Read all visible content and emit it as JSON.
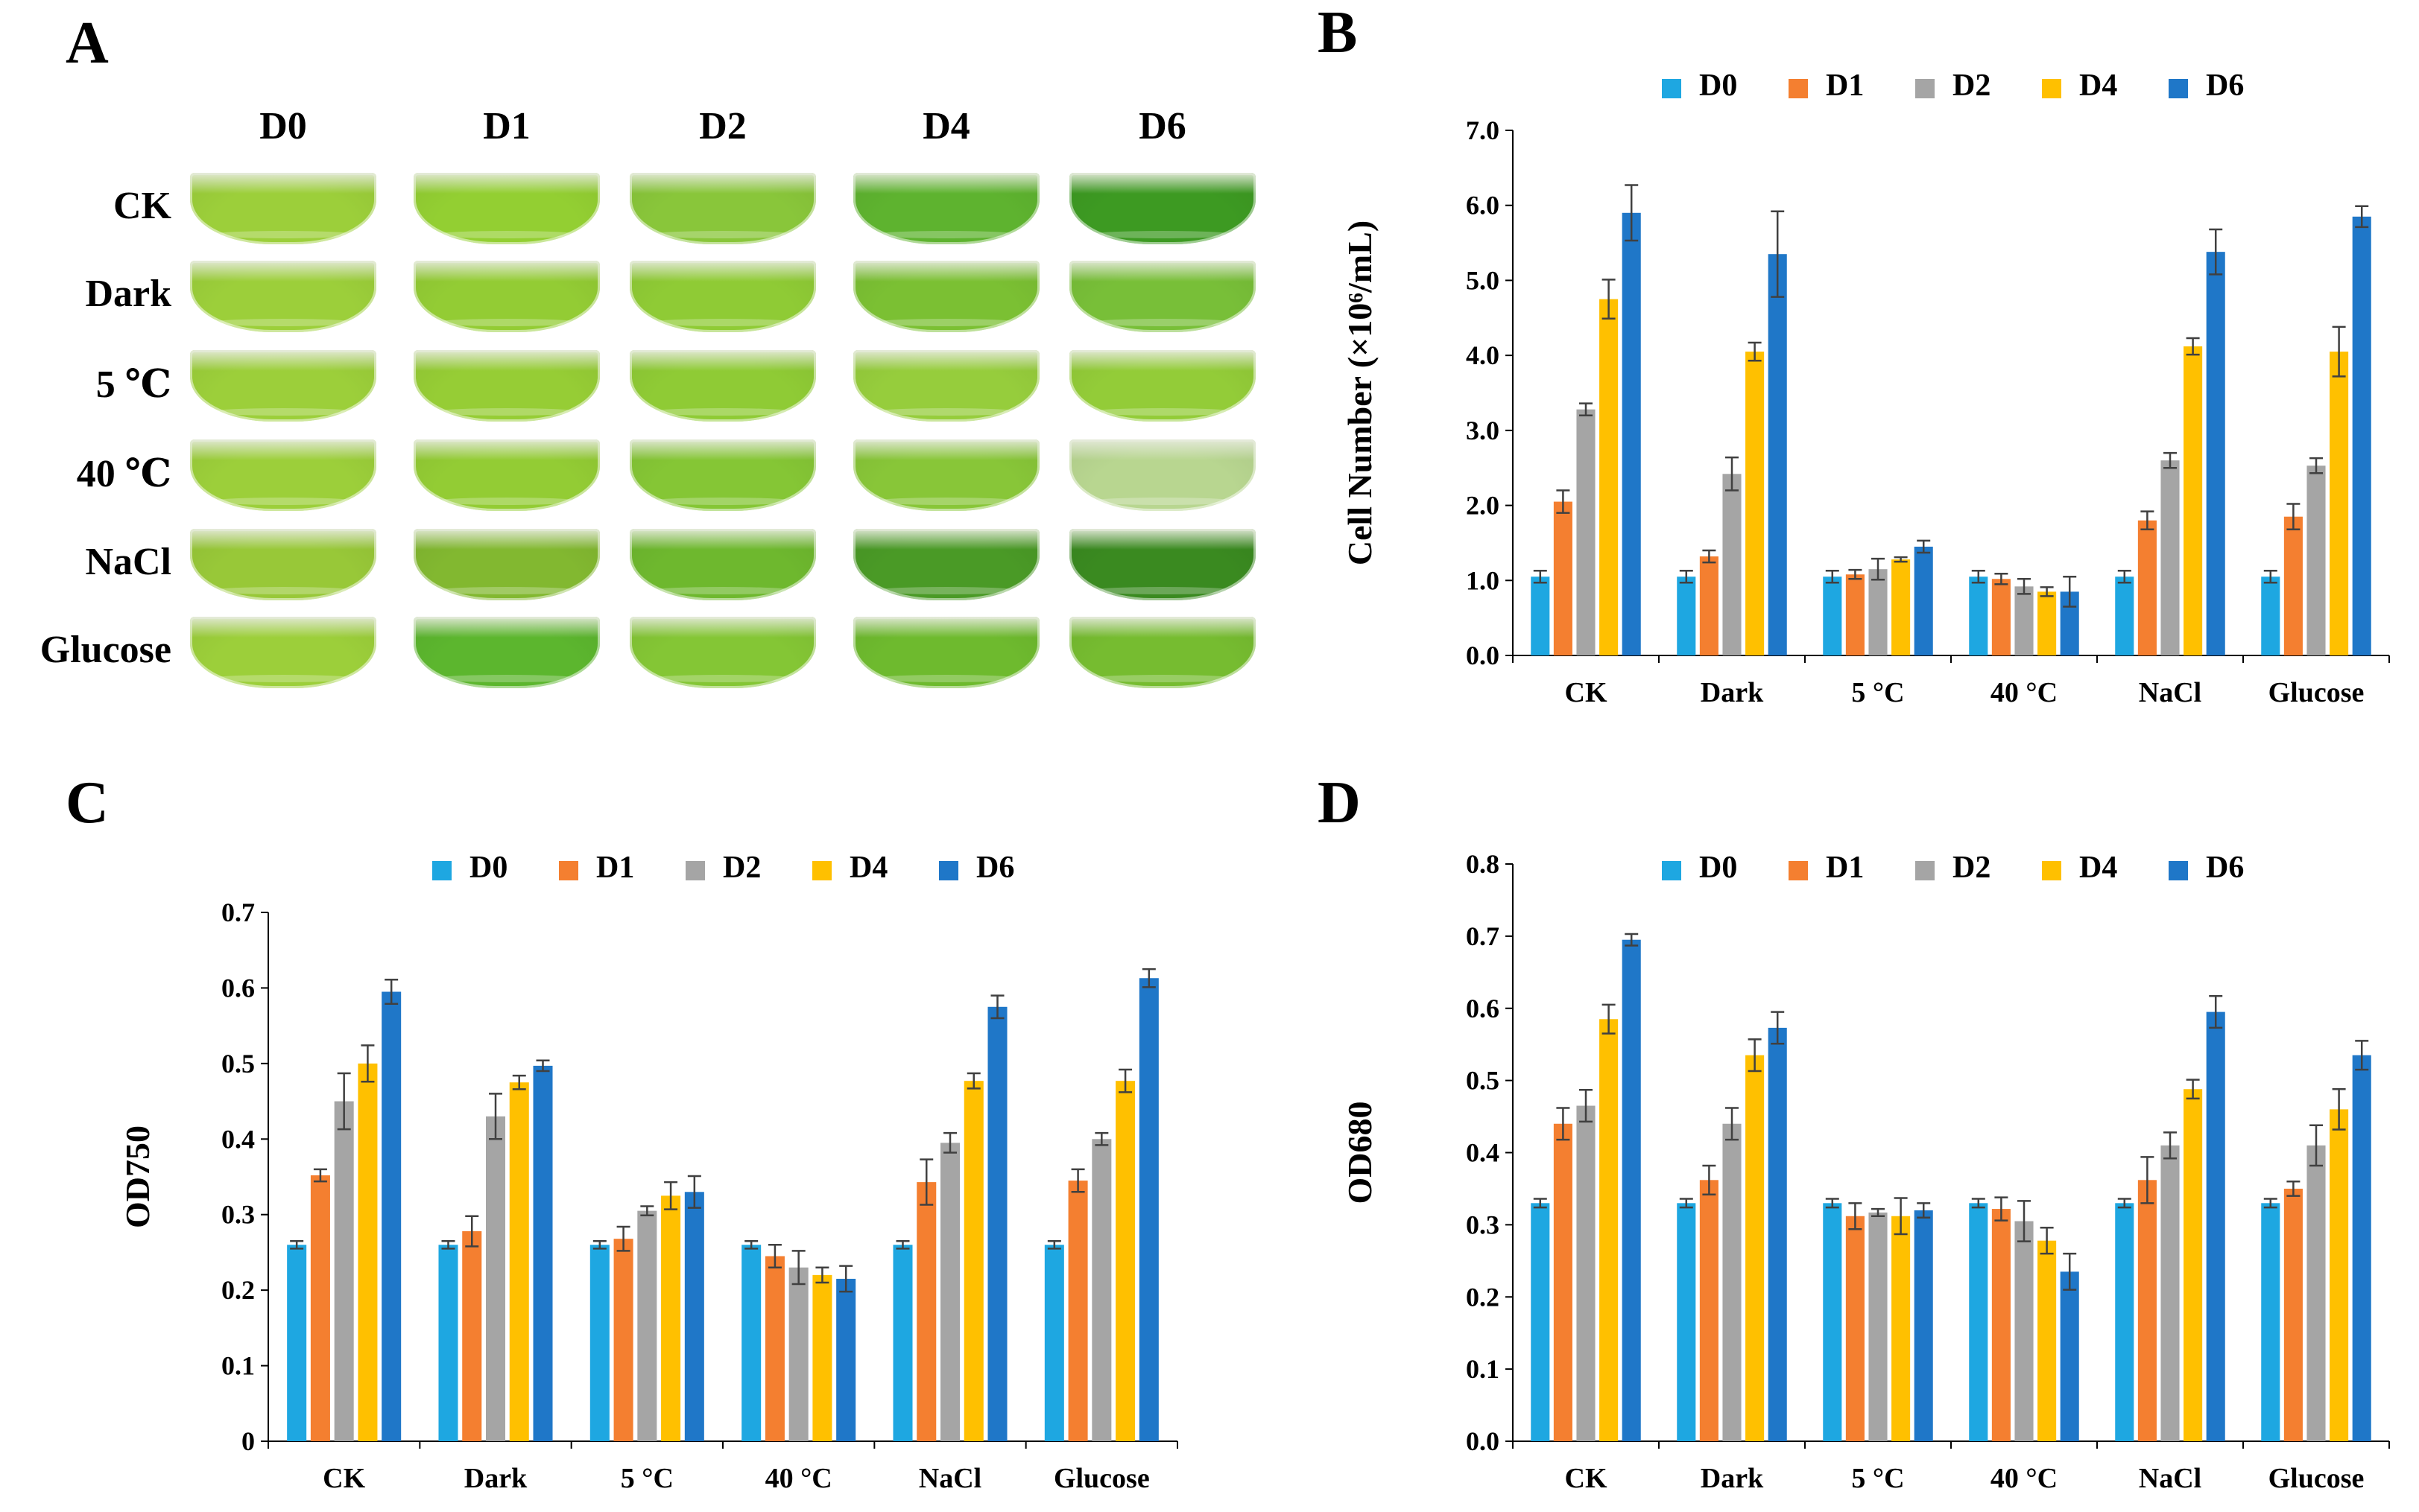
{
  "panels": {
    "a": "A",
    "b": "B",
    "c": "C",
    "d": "D"
  },
  "photo_grid": {
    "columns": [
      "D0",
      "D1",
      "D2",
      "D4",
      "D6"
    ],
    "rows": [
      "CK",
      "Dark",
      "5 ℃",
      "40 ℃",
      "NaCl",
      "Glucose"
    ],
    "colors": [
      [
        "#9ccf3a",
        "#93cf32",
        "#89c63a",
        "#5eb32f",
        "#3d9a22"
      ],
      [
        "#9ccf3a",
        "#93cc34",
        "#8fcb35",
        "#7bc033",
        "#78bf38"
      ],
      [
        "#9ccf3a",
        "#96cd35",
        "#8fcb35",
        "#96cd3c",
        "#93cc38"
      ],
      [
        "#9ccf3a",
        "#93cc34",
        "#85c635",
        "#88c638",
        "#b8d690"
      ],
      [
        "#98c838",
        "#82b830",
        "#6eb82e",
        "#4a9a26",
        "#3a8a20"
      ],
      [
        "#9ccf3a",
        "#5cb62e",
        "#84c635",
        "#6eba2e",
        "#76bc30"
      ]
    ]
  },
  "chart_data": [
    {
      "id": "B",
      "type": "bar",
      "categories": [
        "CK",
        "Dark",
        "5 °C",
        "40 °C",
        "NaCl",
        "Glucose"
      ],
      "series": [
        {
          "name": "D0",
          "color": "#1ea7e1",
          "values": [
            1.05,
            1.05,
            1.05,
            1.05,
            1.05,
            1.05
          ],
          "errors": [
            0.08,
            0.08,
            0.08,
            0.08,
            0.08,
            0.08
          ]
        },
        {
          "name": "D1",
          "color": "#f47f30",
          "values": [
            2.05,
            1.32,
            1.08,
            1.02,
            1.8,
            1.85
          ],
          "errors": [
            0.15,
            0.08,
            0.06,
            0.07,
            0.12,
            0.17
          ]
        },
        {
          "name": "D2",
          "color": "#a5a5a5",
          "values": [
            3.28,
            2.42,
            1.15,
            0.92,
            2.6,
            2.53
          ],
          "errors": [
            0.08,
            0.22,
            0.14,
            0.1,
            0.1,
            0.1
          ]
        },
        {
          "name": "D4",
          "color": "#ffc000",
          "values": [
            4.75,
            4.05,
            1.28,
            0.85,
            4.12,
            4.05
          ],
          "errors": [
            0.26,
            0.12,
            0.03,
            0.06,
            0.11,
            0.33
          ]
        },
        {
          "name": "D6",
          "color": "#1f77c8",
          "values": [
            5.9,
            5.35,
            1.45,
            0.85,
            5.38,
            5.85
          ],
          "errors": [
            0.37,
            0.57,
            0.08,
            0.2,
            0.3,
            0.14
          ]
        }
      ],
      "ylabel": "Cell Number (×10⁶/mL)",
      "ylim": [
        0,
        7
      ],
      "yticks": [
        "0.0",
        "1.0",
        "2.0",
        "3.0",
        "4.0",
        "5.0",
        "6.0",
        "7.0"
      ],
      "legend": "top"
    },
    {
      "id": "C",
      "type": "bar",
      "categories": [
        "CK",
        "Dark",
        "5 °C",
        "40 °C",
        "NaCl",
        "Glucose"
      ],
      "series": [
        {
          "name": "D0",
          "color": "#1ea7e1",
          "values": [
            0.26,
            0.26,
            0.26,
            0.26,
            0.26,
            0.26
          ],
          "errors": [
            0.005,
            0.005,
            0.005,
            0.005,
            0.005,
            0.005
          ]
        },
        {
          "name": "D1",
          "color": "#f47f30",
          "values": [
            0.352,
            0.278,
            0.268,
            0.245,
            0.343,
            0.345
          ],
          "errors": [
            0.008,
            0.02,
            0.016,
            0.015,
            0.03,
            0.015
          ]
        },
        {
          "name": "D2",
          "color": "#a5a5a5",
          "values": [
            0.45,
            0.43,
            0.305,
            0.23,
            0.395,
            0.4
          ],
          "errors": [
            0.037,
            0.03,
            0.006,
            0.022,
            0.013,
            0.008
          ]
        },
        {
          "name": "D4",
          "color": "#ffc000",
          "values": [
            0.5,
            0.475,
            0.325,
            0.22,
            0.477,
            0.477
          ],
          "errors": [
            0.024,
            0.009,
            0.018,
            0.01,
            0.01,
            0.015
          ]
        },
        {
          "name": "D6",
          "color": "#1f77c8",
          "values": [
            0.595,
            0.497,
            0.33,
            0.215,
            0.575,
            0.613
          ],
          "errors": [
            0.016,
            0.007,
            0.021,
            0.017,
            0.015,
            0.012
          ]
        }
      ],
      "ylabel": "OD750",
      "ylim": [
        0,
        0.7
      ],
      "yticks": [
        "0",
        "0.1",
        "0.2",
        "0.3",
        "0.4",
        "0.5",
        "0.6",
        "0.7"
      ],
      "legend": "top"
    },
    {
      "id": "D",
      "type": "bar",
      "categories": [
        "CK",
        "Dark",
        "5 °C",
        "40 °C",
        "NaCl",
        "Glucose"
      ],
      "series": [
        {
          "name": "D0",
          "color": "#1ea7e1",
          "values": [
            0.33,
            0.33,
            0.33,
            0.33,
            0.33,
            0.33
          ],
          "errors": [
            0.006,
            0.006,
            0.006,
            0.006,
            0.006,
            0.006
          ]
        },
        {
          "name": "D1",
          "color": "#f47f30",
          "values": [
            0.44,
            0.362,
            0.312,
            0.322,
            0.362,
            0.35
          ],
          "errors": [
            0.022,
            0.02,
            0.018,
            0.016,
            0.032,
            0.01
          ]
        },
        {
          "name": "D2",
          "color": "#a5a5a5",
          "values": [
            0.465,
            0.44,
            0.317,
            0.305,
            0.41,
            0.41
          ],
          "errors": [
            0.022,
            0.022,
            0.005,
            0.028,
            0.018,
            0.028
          ]
        },
        {
          "name": "D4",
          "color": "#ffc000",
          "values": [
            0.585,
            0.535,
            0.312,
            0.278,
            0.488,
            0.46
          ],
          "errors": [
            0.02,
            0.022,
            0.025,
            0.018,
            0.013,
            0.028
          ]
        },
        {
          "name": "D6",
          "color": "#1f77c8",
          "values": [
            0.695,
            0.573,
            0.32,
            0.235,
            0.595,
            0.535
          ],
          "errors": [
            0.008,
            0.022,
            0.01,
            0.025,
            0.022,
            0.02
          ]
        }
      ],
      "ylabel": "OD680",
      "ylim": [
        0,
        0.8
      ],
      "yticks": [
        "0.0",
        "0.1",
        "0.2",
        "0.3",
        "0.4",
        "0.5",
        "0.6",
        "0.7",
        "0.8"
      ],
      "legend": "top"
    }
  ]
}
